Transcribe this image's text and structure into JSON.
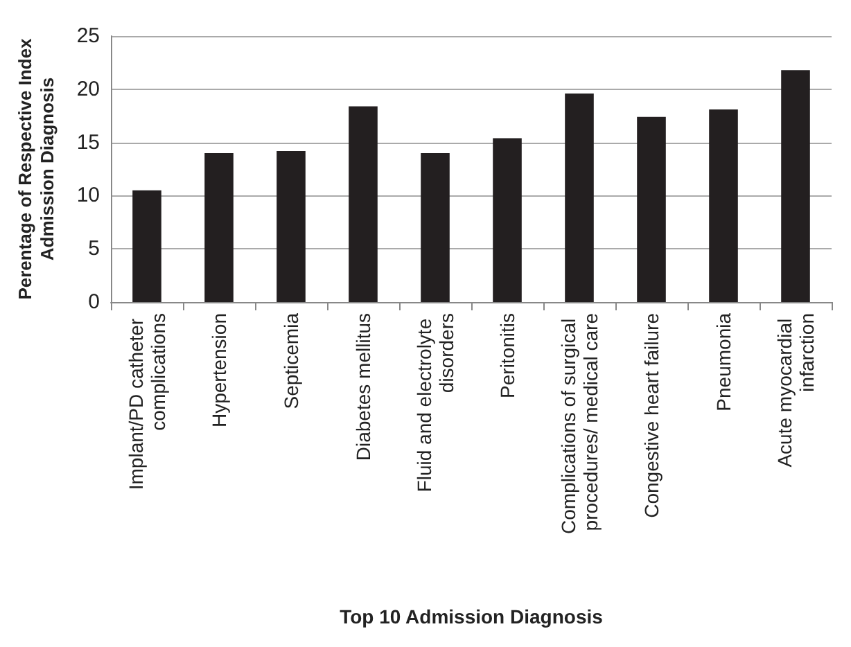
{
  "chart_data": {
    "type": "bar",
    "xlabel": "Top 10 Admission Diagnosis",
    "ylabel": "Perentage of Respective Index Admission Diagnosis",
    "categories": [
      "Implant/PD catheter complications",
      "Hypertension",
      "Septicemia",
      "Diabetes mellitus",
      "Fluid and electrolyte disorders",
      "Peritonitis",
      "Complications of surgical procedures/ medical care",
      "Congestive heart failure",
      "Pneumonia",
      "Acute myocardial infarction"
    ],
    "values": [
      10.5,
      14.0,
      14.2,
      18.4,
      14.0,
      15.4,
      19.6,
      17.4,
      18.1,
      21.8
    ],
    "color": "#231f20",
    "ylim": [
      0,
      25
    ],
    "yticks": [
      0,
      5,
      10,
      15,
      20,
      25
    ],
    "grid": "y"
  }
}
